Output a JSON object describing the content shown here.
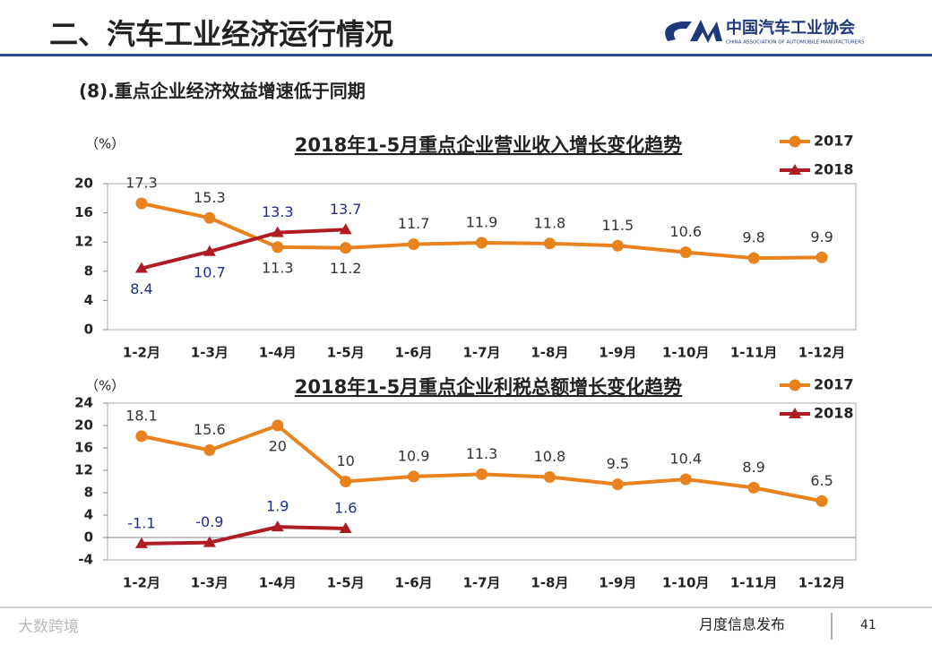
{
  "header": {
    "title": "二、汽车工业经济运行情况",
    "logo_cn": "中国汽车工业协会",
    "logo_en": "CHINA ASSOCIATION OF AUTOMOBILE MANUFACTURERS",
    "subtitle": "(8).重点企业经济效益增速低于同期"
  },
  "chart_data": [
    {
      "type": "line",
      "title": "2018年1-5月重点企业营业收入增长变化趋势",
      "y_unit": "（%）",
      "categories": [
        "1-2月",
        "1-3月",
        "1-4月",
        "1-5月",
        "1-6月",
        "1-7月",
        "1-8月",
        "1-9月",
        "1-10月",
        "1-11月",
        "1-12月"
      ],
      "series": [
        {
          "name": "2017",
          "color": "#e8821e",
          "marker": "circle",
          "values": [
            17.3,
            15.3,
            11.3,
            11.2,
            11.7,
            11.9,
            11.8,
            11.5,
            10.6,
            9.8,
            9.9
          ]
        },
        {
          "name": "2018",
          "color": "#b01c24",
          "marker": "triangle",
          "values": [
            8.4,
            10.7,
            13.3,
            13.7,
            null,
            null,
            null,
            null,
            null,
            null,
            null
          ]
        }
      ],
      "ylim": [
        0,
        20
      ],
      "yticks": [
        0,
        4,
        8,
        12,
        16,
        20
      ],
      "legend": "upper right"
    },
    {
      "type": "line",
      "title": "2018年1-5月重点企业利税总额增长变化趋势",
      "y_unit": "（%）",
      "categories": [
        "1-2月",
        "1-3月",
        "1-4月",
        "1-5月",
        "1-6月",
        "1-7月",
        "1-8月",
        "1-9月",
        "1-10月",
        "1-11月",
        "1-12月"
      ],
      "series": [
        {
          "name": "2017",
          "color": "#e8821e",
          "marker": "circle",
          "values": [
            18.1,
            15.6,
            20,
            10,
            10.9,
            11.3,
            10.8,
            9.5,
            10.4,
            8.9,
            6.5
          ]
        },
        {
          "name": "2018",
          "color": "#b01c24",
          "marker": "triangle",
          "values": [
            -1.1,
            -0.9,
            1.9,
            1.6,
            null,
            null,
            null,
            null,
            null,
            null,
            null
          ]
        }
      ],
      "ylim": [
        -4,
        24
      ],
      "yticks": [
        -4,
        0,
        4,
        8,
        12,
        16,
        20,
        24
      ],
      "legend": "upper right"
    }
  ],
  "footer": {
    "watermark": "大数跨境",
    "text": "月度信息发布",
    "page": "41"
  }
}
